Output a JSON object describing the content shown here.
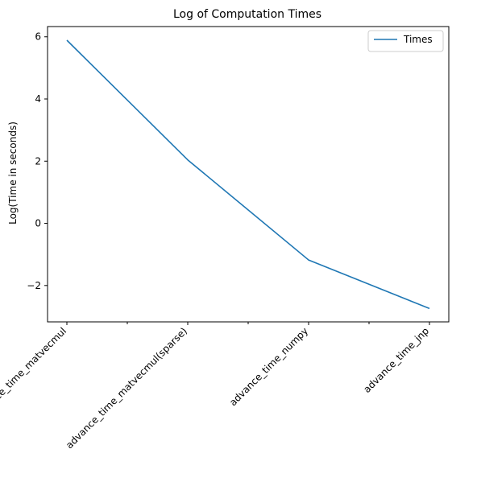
{
  "chart_data": {
    "type": "line",
    "title": "Log of Computation Times",
    "xlabel": "",
    "ylabel": "Log(Time in seconds)",
    "categories": [
      "advance_time_matvecmul",
      "advance_time_matvecmul(sparse)",
      "advance_time_numpy",
      "advance_time_jnp"
    ],
    "series": [
      {
        "name": "Times",
        "color": "#1f77b4",
        "values": [
          5.89,
          2.04,
          -1.18,
          -2.74
        ]
      }
    ],
    "y_ticks": [
      -2,
      0,
      2,
      4,
      6
    ],
    "y_tick_labels": [
      "−2",
      "0",
      "2",
      "4",
      "6"
    ],
    "ylim": [
      -3.17,
      6.33
    ],
    "grid": false,
    "legend_position": "top-right"
  }
}
